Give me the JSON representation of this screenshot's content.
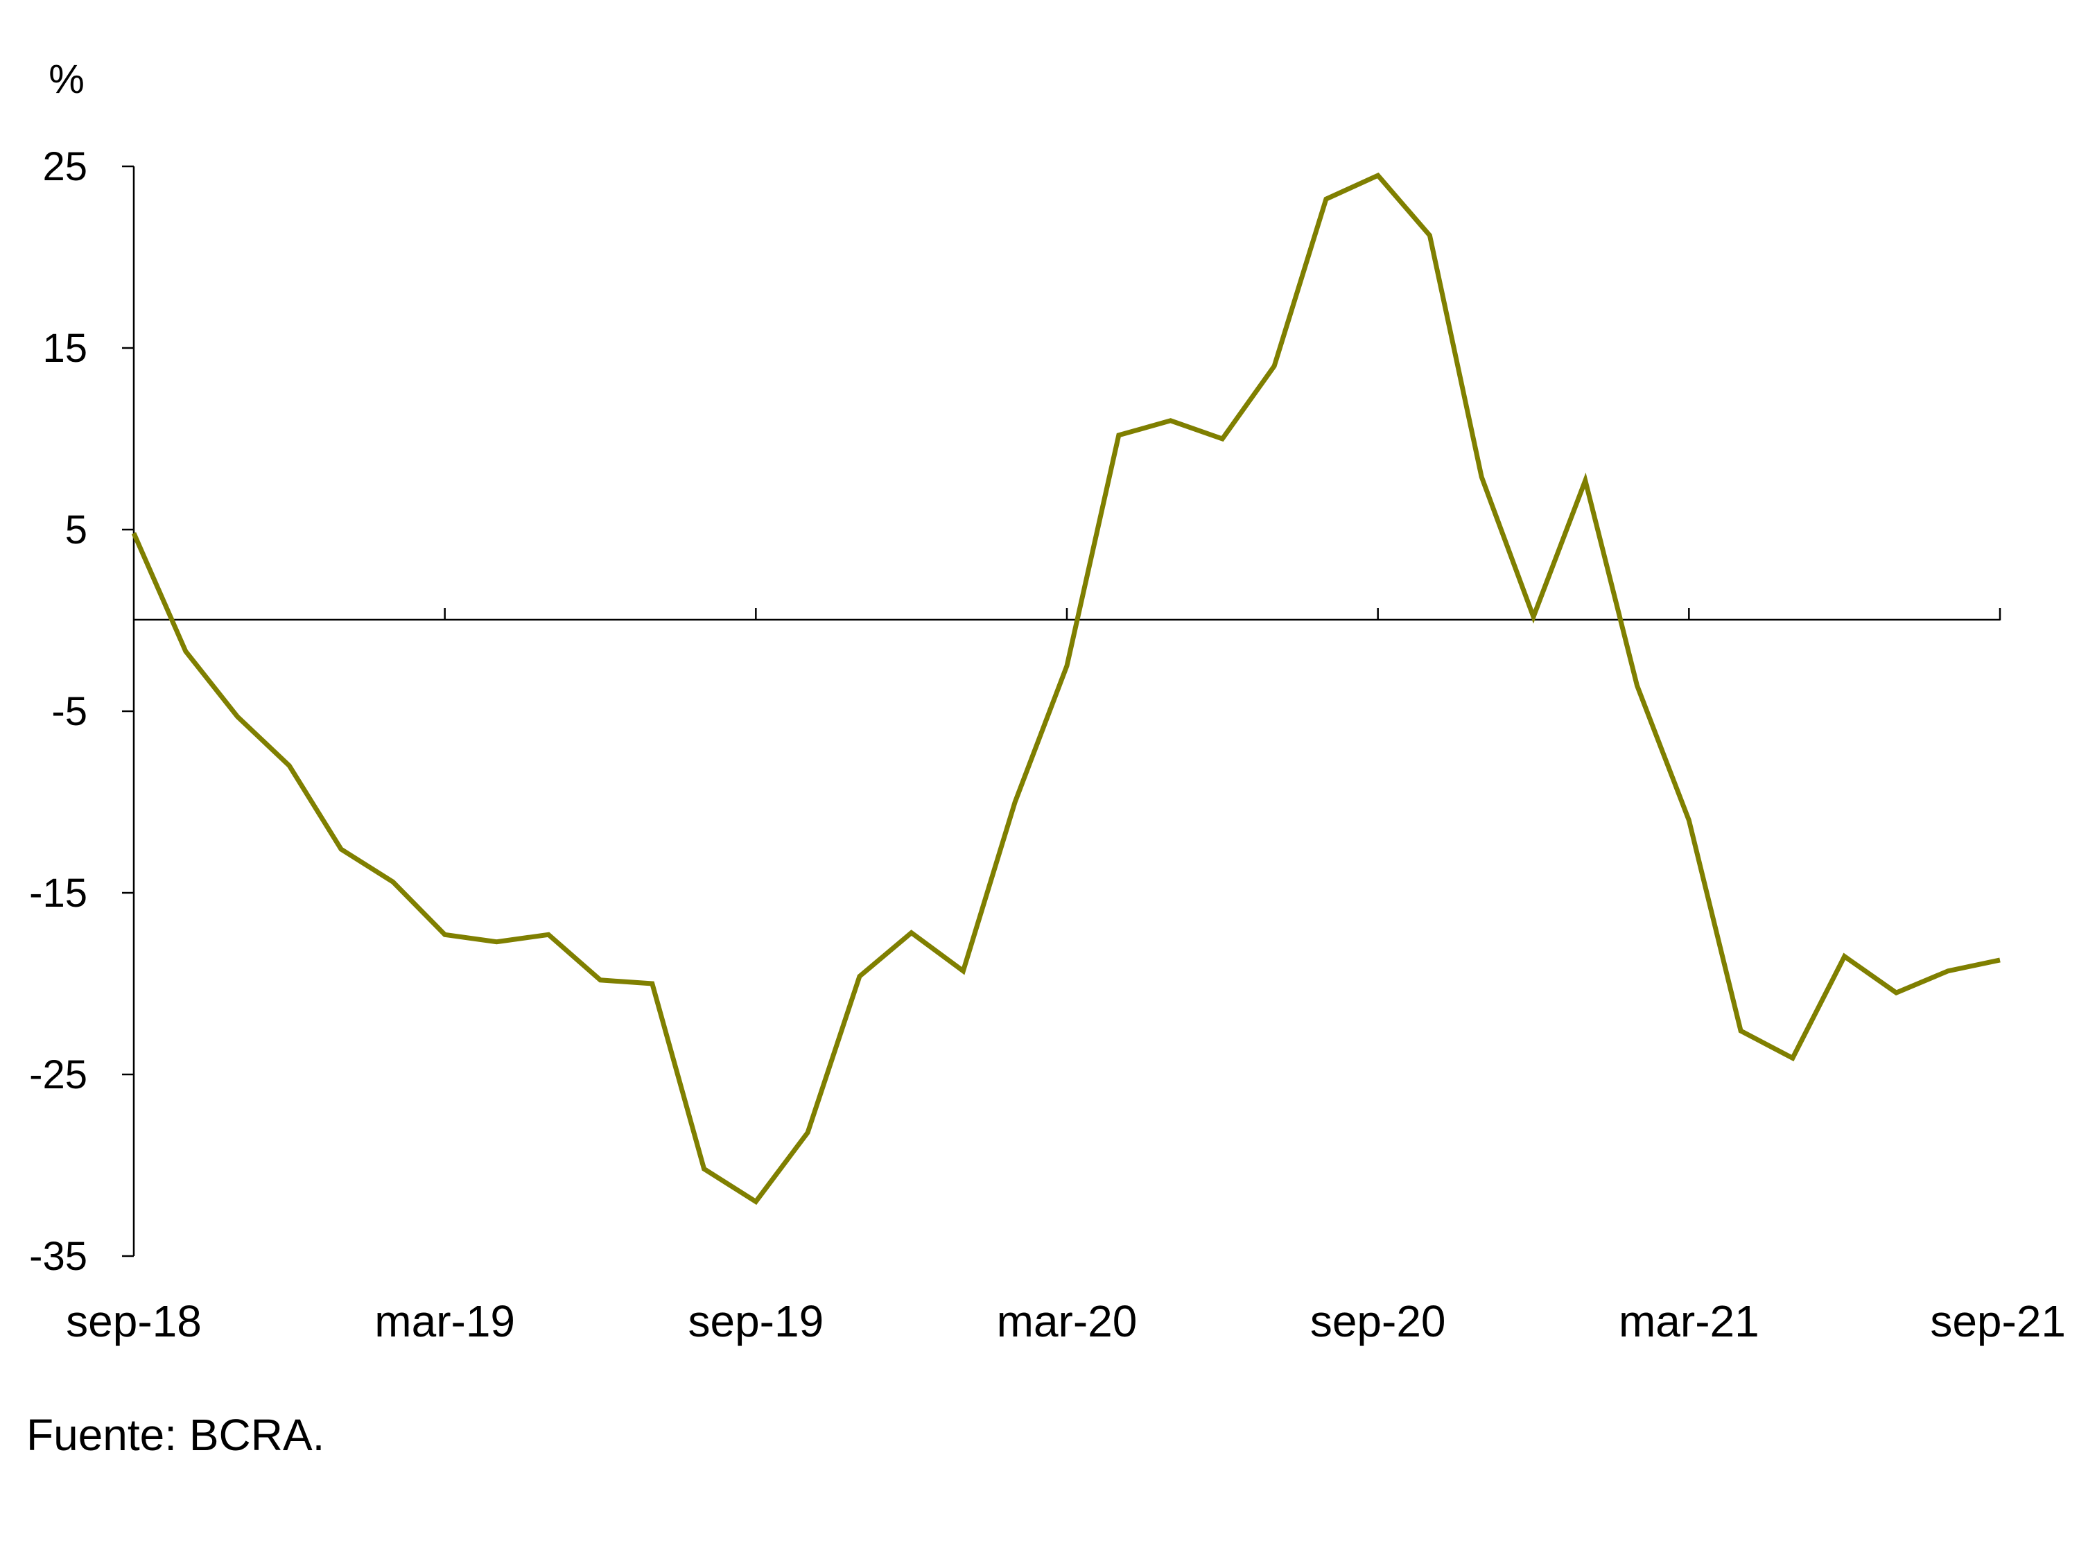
{
  "chart_data": {
    "type": "line",
    "unit": "%",
    "ylim": [
      -35,
      25
    ],
    "yticks": [
      25,
      15,
      5,
      -5,
      -15,
      -25,
      -35
    ],
    "x_labels": [
      "sep-18",
      "mar-19",
      "sep-19",
      "mar-20",
      "sep-20",
      "mar-21",
      "sep-21"
    ],
    "x": [
      "sep-18",
      "oct-18",
      "nov-18",
      "dic-18",
      "ene-19",
      "feb-19",
      "mar-19",
      "abr-19",
      "may-19",
      "jun-19",
      "jul-19",
      "ago-19",
      "sep-19",
      "oct-19",
      "nov-19",
      "dic-19",
      "ene-20",
      "feb-20",
      "mar-20",
      "abr-20",
      "may-20",
      "jun-20",
      "jul-20",
      "ago-20",
      "sep-20",
      "oct-20",
      "nov-20",
      "dic-20",
      "ene-21",
      "feb-21",
      "mar-21",
      "abr-21",
      "may-21",
      "jun-21",
      "jul-21",
      "ago-21",
      "sep-21"
    ],
    "series": [
      {
        "name": "",
        "color": "#7f7f00",
        "values": [
          4.8,
          -1.7,
          -5.3,
          -8.0,
          -12.6,
          -14.4,
          -17.3,
          -17.7,
          -17.3,
          -19.8,
          -20.0,
          -30.2,
          -32.0,
          -28.2,
          -19.6,
          -17.2,
          -19.3,
          -10.0,
          -2.5,
          10.2,
          11.0,
          10.0,
          14.0,
          23.2,
          24.5,
          21.2,
          7.9,
          0.2,
          7.7,
          -3.6,
          -11.0,
          -22.6,
          -24.1,
          -18.5,
          -20.5,
          -19.3,
          -18.7
        ]
      }
    ],
    "zero_line": true,
    "grid": false,
    "legend": "none"
  },
  "source": "Fuente: BCRA."
}
